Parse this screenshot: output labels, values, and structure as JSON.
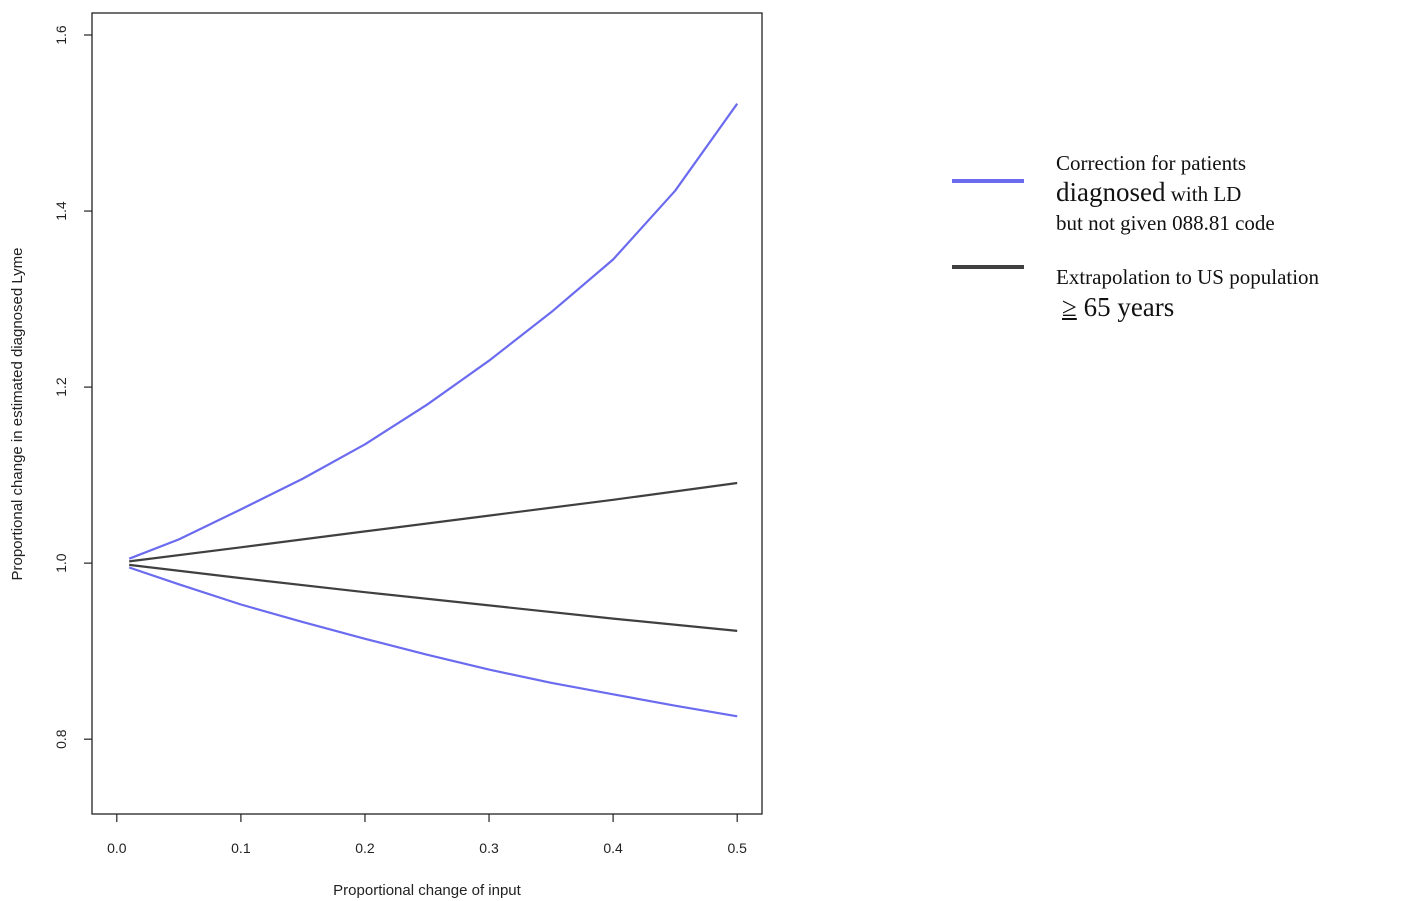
{
  "chart_data": {
    "type": "line",
    "title": "",
    "xlabel": "Proportional change of input",
    "ylabel": "Proportional change in estimated diagnosed Lyme",
    "xlim": [
      -0.02,
      0.52
    ],
    "ylim": [
      0.715,
      1.625
    ],
    "x_ticks": [
      0.0,
      0.1,
      0.2,
      0.3,
      0.4,
      0.5
    ],
    "x_tick_labels": [
      "0.0",
      "0.1",
      "0.2",
      "0.3",
      "0.4",
      "0.5"
    ],
    "y_ticks": [
      0.8,
      1.0,
      1.2,
      1.4,
      1.6
    ],
    "y_tick_labels": [
      "0.8",
      "1.0",
      "1.2",
      "1.4",
      "1.6"
    ],
    "grid": false,
    "legend_position": "right",
    "series": [
      {
        "name": "Correction for patients diagnosed with LD but not given 088.81 code",
        "color": "#6b6bf0",
        "x": [
          0.01,
          0.05,
          0.1,
          0.15,
          0.2,
          0.25,
          0.3,
          0.35,
          0.4,
          0.45,
          0.5
        ],
        "y": [
          1.005,
          1.027,
          1.061,
          1.096,
          1.135,
          1.18,
          1.23,
          1.285,
          1.345,
          1.423,
          1.522
        ]
      },
      {
        "name": "Correction for patients diagnosed with LD but not given 088.81 code",
        "color": "#6b6bf0",
        "x": [
          0.01,
          0.05,
          0.1,
          0.15,
          0.2,
          0.25,
          0.3,
          0.35,
          0.4,
          0.45,
          0.5
        ],
        "y": [
          0.995,
          0.976,
          0.953,
          0.933,
          0.914,
          0.896,
          0.879,
          0.864,
          0.851,
          0.838,
          0.826
        ]
      },
      {
        "name": "Extrapolation to US population ≥ 65 years",
        "color": "#404040",
        "x": [
          0.01,
          0.1,
          0.2,
          0.3,
          0.4,
          0.5
        ],
        "y": [
          1.002,
          1.018,
          1.036,
          1.054,
          1.072,
          1.091
        ]
      },
      {
        "name": "Extrapolation to US population ≥ 65 years",
        "color": "#404040",
        "x": [
          0.01,
          0.1,
          0.2,
          0.3,
          0.4,
          0.5
        ],
        "y": [
          0.998,
          0.983,
          0.967,
          0.952,
          0.937,
          0.923
        ]
      }
    ]
  },
  "legend": {
    "entries": [
      {
        "color": "#6b6bf0",
        "lines": [
          {
            "text": "Correction for patients",
            "size": "small"
          },
          {
            "text": "diagnosed",
            "size": "large",
            "tail": " with LD"
          },
          {
            "text": "but not given 088.81 code",
            "size": "small"
          }
        ]
      },
      {
        "color": "#404040",
        "lines": [
          {
            "text": "Extrapolation to US population",
            "size": "small"
          },
          {
            "text": "≥",
            "size": "large",
            "tail": " 65 years"
          }
        ]
      }
    ]
  }
}
